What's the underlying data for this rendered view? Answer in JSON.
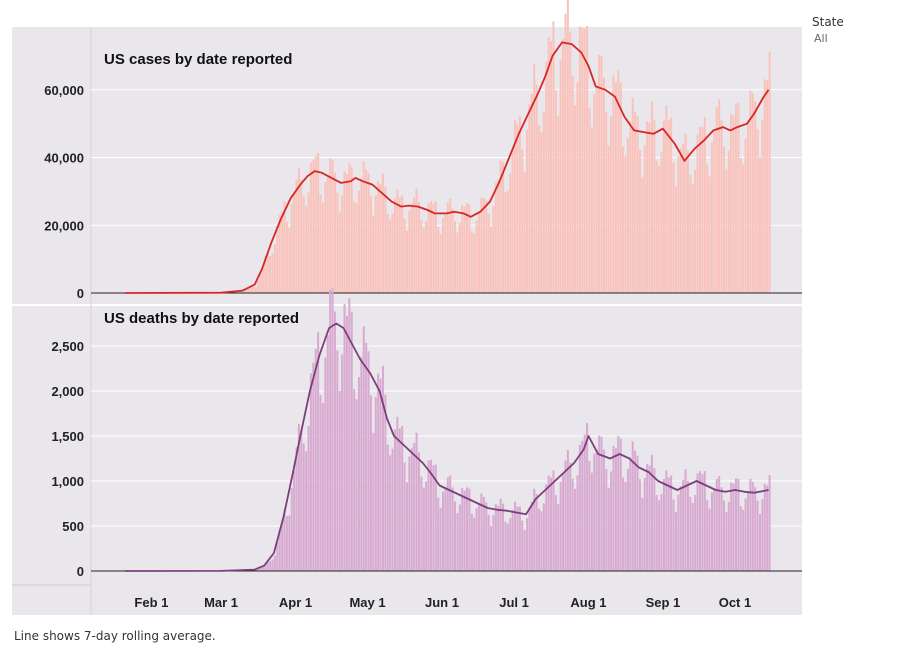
{
  "filter": {
    "label": "State",
    "value": "All"
  },
  "footnote": "Line shows 7-day rolling average.",
  "colors": {
    "background": "#e9e6ec",
    "cases_bar": "#f9c3bb",
    "cases_line": "#d62728",
    "deaths_bar": "#d8aad0",
    "deaths_line": "#7b3f7b"
  },
  "chart_data": [
    {
      "type": "bar",
      "title": "US cases by date reported",
      "x_domain": [
        "2020-01-21",
        "2020-10-16"
      ],
      "xticks": [
        {
          "date": "2020-02-01",
          "label": "Feb 1"
        },
        {
          "date": "2020-03-01",
          "label": "Mar 1"
        },
        {
          "date": "2020-04-01",
          "label": "Apr 1"
        },
        {
          "date": "2020-05-01",
          "label": "May 1"
        },
        {
          "date": "2020-06-01",
          "label": "Jun 1"
        },
        {
          "date": "2020-07-01",
          "label": "Jul 1"
        },
        {
          "date": "2020-08-01",
          "label": "Aug 1"
        },
        {
          "date": "2020-09-01",
          "label": "Sep 1"
        },
        {
          "date": "2020-10-01",
          "label": "Oct 1"
        }
      ],
      "ylim": [
        0,
        75000
      ],
      "yticks": [
        {
          "value": 0,
          "label": "0"
        },
        {
          "value": 20000,
          "label": "20,000"
        },
        {
          "value": 40000,
          "label": "40,000"
        },
        {
          "value": 60000,
          "label": "60,000"
        }
      ],
      "series": [
        {
          "kind": "line",
          "points": [
            [
              "2020-01-21",
              0
            ],
            [
              "2020-03-01",
              100
            ],
            [
              "2020-03-10",
              700
            ],
            [
              "2020-03-15",
              2500
            ],
            [
              "2020-03-18",
              7000
            ],
            [
              "2020-03-22",
              15000
            ],
            [
              "2020-03-26",
              22000
            ],
            [
              "2020-03-30",
              28000
            ],
            [
              "2020-04-03",
              32000
            ],
            [
              "2020-04-06",
              34500
            ],
            [
              "2020-04-09",
              36000
            ],
            [
              "2020-04-12",
              35500
            ],
            [
              "2020-04-16",
              34000
            ],
            [
              "2020-04-20",
              32500
            ],
            [
              "2020-04-24",
              33000
            ],
            [
              "2020-04-26",
              34000
            ],
            [
              "2020-04-29",
              33000
            ],
            [
              "2020-05-03",
              32000
            ],
            [
              "2020-05-07",
              29500
            ],
            [
              "2020-05-11",
              27000
            ],
            [
              "2020-05-15",
              25500
            ],
            [
              "2020-05-18",
              25800
            ],
            [
              "2020-05-22",
              25500
            ],
            [
              "2020-05-26",
              24500
            ],
            [
              "2020-05-29",
              23500
            ],
            [
              "2020-06-03",
              23500
            ],
            [
              "2020-06-06",
              24000
            ],
            [
              "2020-06-10",
              23500
            ],
            [
              "2020-06-13",
              22500
            ],
            [
              "2020-06-17",
              24000
            ],
            [
              "2020-06-21",
              27000
            ],
            [
              "2020-06-25",
              33000
            ],
            [
              "2020-06-29",
              40000
            ],
            [
              "2020-07-03",
              47000
            ],
            [
              "2020-07-07",
              53000
            ],
            [
              "2020-07-11",
              59000
            ],
            [
              "2020-07-14",
              64000
            ],
            [
              "2020-07-17",
              70000
            ],
            [
              "2020-07-21",
              74000
            ],
            [
              "2020-07-25",
              73500
            ],
            [
              "2020-07-29",
              71000
            ],
            [
              "2020-08-01",
              67000
            ],
            [
              "2020-08-04",
              61000
            ],
            [
              "2020-08-08",
              60000
            ],
            [
              "2020-08-12",
              58000
            ],
            [
              "2020-08-16",
              52000
            ],
            [
              "2020-08-20",
              48000
            ],
            [
              "2020-08-24",
              47500
            ],
            [
              "2020-08-28",
              47000
            ],
            [
              "2020-09-01",
              48500
            ],
            [
              "2020-09-06",
              44000
            ],
            [
              "2020-09-10",
              39000
            ],
            [
              "2020-09-14",
              42500
            ],
            [
              "2020-09-18",
              45000
            ],
            [
              "2020-09-22",
              48000
            ],
            [
              "2020-09-26",
              49000
            ],
            [
              "2020-09-29",
              48000
            ],
            [
              "2020-10-02",
              49000
            ],
            [
              "2020-10-06",
              50000
            ],
            [
              "2020-10-09",
              53000
            ],
            [
              "2020-10-13",
              58000
            ],
            [
              "2020-10-15",
              60000
            ]
          ]
        },
        {
          "kind": "bar",
          "values": "daily counts distributed around the 7-day average (weekly pattern)"
        }
      ]
    },
    {
      "type": "bar",
      "title": "US deaths by date reported",
      "x_domain": [
        "2020-01-21",
        "2020-10-16"
      ],
      "ylim": [
        0,
        2800
      ],
      "yticks": [
        {
          "value": 0,
          "label": "0"
        },
        {
          "value": 500,
          "label": "500"
        },
        {
          "value": 1000,
          "label": "1,000"
        },
        {
          "value": 1500,
          "label": "1,500"
        },
        {
          "value": 2000,
          "label": "2,000"
        },
        {
          "value": 2500,
          "label": "2,500"
        }
      ],
      "series": [
        {
          "kind": "line",
          "points": [
            [
              "2020-01-21",
              0
            ],
            [
              "2020-03-01",
              1
            ],
            [
              "2020-03-15",
              15
            ],
            [
              "2020-03-19",
              60
            ],
            [
              "2020-03-23",
              200
            ],
            [
              "2020-03-27",
              600
            ],
            [
              "2020-03-31",
              1100
            ],
            [
              "2020-04-03",
              1500
            ],
            [
              "2020-04-07",
              2000
            ],
            [
              "2020-04-11",
              2400
            ],
            [
              "2020-04-15",
              2700
            ],
            [
              "2020-04-18",
              2750
            ],
            [
              "2020-04-21",
              2700
            ],
            [
              "2020-04-24",
              2550
            ],
            [
              "2020-04-28",
              2350
            ],
            [
              "2020-05-02",
              2200
            ],
            [
              "2020-05-06",
              2000
            ],
            [
              "2020-05-09",
              1700
            ],
            [
              "2020-05-12",
              1500
            ],
            [
              "2020-05-16",
              1400
            ],
            [
              "2020-05-20",
              1300
            ],
            [
              "2020-05-24",
              1200
            ],
            [
              "2020-05-27",
              1100
            ],
            [
              "2020-05-31",
              950
            ],
            [
              "2020-06-04",
              900
            ],
            [
              "2020-06-08",
              850
            ],
            [
              "2020-06-12",
              800
            ],
            [
              "2020-06-16",
              750
            ],
            [
              "2020-06-20",
              700
            ],
            [
              "2020-06-24",
              680
            ],
            [
              "2020-06-28",
              670
            ],
            [
              "2020-07-02",
              650
            ],
            [
              "2020-07-06",
              630
            ],
            [
              "2020-07-10",
              800
            ],
            [
              "2020-07-14",
              900
            ],
            [
              "2020-07-18",
              1000
            ],
            [
              "2020-07-22",
              1100
            ],
            [
              "2020-07-26",
              1200
            ],
            [
              "2020-07-30",
              1350
            ],
            [
              "2020-08-01",
              1500
            ],
            [
              "2020-08-05",
              1300
            ],
            [
              "2020-08-10",
              1250
            ],
            [
              "2020-08-14",
              1300
            ],
            [
              "2020-08-18",
              1250
            ],
            [
              "2020-08-22",
              1150
            ],
            [
              "2020-08-26",
              1100
            ],
            [
              "2020-08-30",
              1000
            ],
            [
              "2020-09-03",
              950
            ],
            [
              "2020-09-07",
              900
            ],
            [
              "2020-09-11",
              950
            ],
            [
              "2020-09-15",
              1000
            ],
            [
              "2020-09-19",
              950
            ],
            [
              "2020-09-23",
              900
            ],
            [
              "2020-09-27",
              880
            ],
            [
              "2020-10-01",
              900
            ],
            [
              "2020-10-05",
              880
            ],
            [
              "2020-10-09",
              870
            ],
            [
              "2020-10-15",
              900
            ]
          ]
        },
        {
          "kind": "bar",
          "values": "daily counts distributed around the 7-day average (weekly pattern)"
        }
      ]
    }
  ]
}
